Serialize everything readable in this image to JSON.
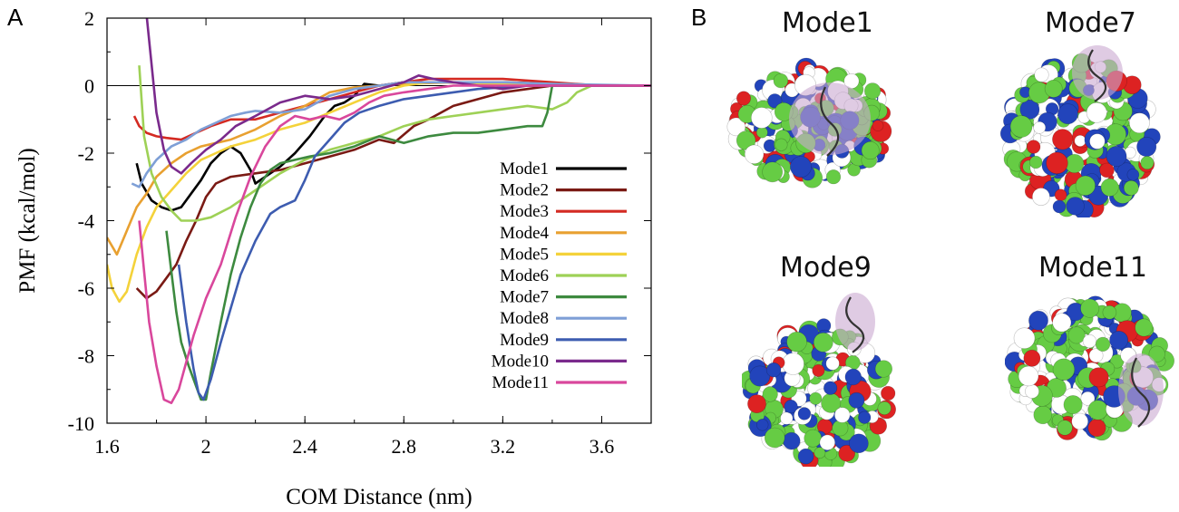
{
  "panels": {
    "a": "A",
    "b": "B"
  },
  "chart_data": {
    "type": "line",
    "xlabel": "COM Distance (nm)",
    "ylabel": "PMF (kcal/mol)",
    "xlim": [
      1.6,
      3.8
    ],
    "ylim": [
      -10,
      2
    ],
    "xticks": [
      1.6,
      2,
      2.4,
      2.8,
      3.2,
      3.6
    ],
    "xtick_labels": [
      "1.6",
      "2",
      "2.4",
      "2.8",
      "3.2",
      "3.6"
    ],
    "yticks": [
      -10,
      -8,
      -6,
      -4,
      -2,
      0,
      2
    ],
    "ytick_labels": [
      "-10",
      "-8",
      "-6",
      "-4",
      "-2",
      "0",
      "2"
    ],
    "grid": false,
    "legend_position": "bottom-right",
    "series": [
      {
        "name": "Mode1",
        "color": "#000000",
        "points": [
          [
            1.72,
            -2.3
          ],
          [
            1.74,
            -2.9
          ],
          [
            1.78,
            -3.4
          ],
          [
            1.82,
            -3.6
          ],
          [
            1.86,
            -3.7
          ],
          [
            1.9,
            -3.6
          ],
          [
            1.94,
            -3.2
          ],
          [
            1.98,
            -2.8
          ],
          [
            2.02,
            -2.3
          ],
          [
            2.06,
            -2.0
          ],
          [
            2.1,
            -1.8
          ],
          [
            2.14,
            -2.0
          ],
          [
            2.18,
            -2.5
          ],
          [
            2.2,
            -2.9
          ],
          [
            2.24,
            -2.7
          ],
          [
            2.3,
            -2.4
          ],
          [
            2.36,
            -2.0
          ],
          [
            2.42,
            -1.5
          ],
          [
            2.48,
            -0.9
          ],
          [
            2.52,
            -0.6
          ],
          [
            2.56,
            -0.5
          ],
          [
            2.6,
            -0.3
          ],
          [
            2.64,
            0.05
          ],
          [
            2.7,
            0.0
          ],
          [
            2.8,
            0.1
          ],
          [
            2.9,
            0.1
          ],
          [
            3.0,
            0.1
          ],
          [
            3.2,
            0.1
          ],
          [
            3.4,
            0.05
          ],
          [
            3.6,
            0.0
          ],
          [
            3.8,
            0.0
          ]
        ]
      },
      {
        "name": "Mode2",
        "color": "#7a1a14",
        "points": [
          [
            1.72,
            -6.0
          ],
          [
            1.76,
            -6.3
          ],
          [
            1.8,
            -6.1
          ],
          [
            1.84,
            -5.7
          ],
          [
            1.88,
            -5.3
          ],
          [
            1.92,
            -4.6
          ],
          [
            1.96,
            -4.0
          ],
          [
            2.0,
            -3.3
          ],
          [
            2.04,
            -2.9
          ],
          [
            2.1,
            -2.7
          ],
          [
            2.2,
            -2.6
          ],
          [
            2.3,
            -2.5
          ],
          [
            2.4,
            -2.3
          ],
          [
            2.5,
            -2.1
          ],
          [
            2.6,
            -1.9
          ],
          [
            2.7,
            -1.6
          ],
          [
            2.76,
            -1.7
          ],
          [
            2.84,
            -1.2
          ],
          [
            2.9,
            -1.0
          ],
          [
            3.0,
            -0.6
          ],
          [
            3.1,
            -0.4
          ],
          [
            3.2,
            -0.2
          ],
          [
            3.3,
            -0.1
          ],
          [
            3.4,
            0.0
          ],
          [
            3.6,
            0.0
          ],
          [
            3.8,
            0.0
          ]
        ]
      },
      {
        "name": "Mode3",
        "color": "#d42a22",
        "points": [
          [
            1.71,
            -0.9
          ],
          [
            1.73,
            -1.2
          ],
          [
            1.76,
            -1.4
          ],
          [
            1.8,
            -1.5
          ],
          [
            1.84,
            -1.55
          ],
          [
            1.9,
            -1.6
          ],
          [
            1.96,
            -1.4
          ],
          [
            2.02,
            -1.2
          ],
          [
            2.1,
            -1.0
          ],
          [
            2.2,
            -1.0
          ],
          [
            2.3,
            -0.8
          ],
          [
            2.4,
            -0.6
          ],
          [
            2.5,
            -0.4
          ],
          [
            2.6,
            -0.2
          ],
          [
            2.7,
            0.0
          ],
          [
            2.8,
            0.1
          ],
          [
            2.9,
            0.2
          ],
          [
            3.0,
            0.2
          ],
          [
            3.2,
            0.2
          ],
          [
            3.4,
            0.1
          ],
          [
            3.6,
            0.0
          ],
          [
            3.8,
            0.0
          ]
        ]
      },
      {
        "name": "Mode4",
        "color": "#e8a030",
        "points": [
          [
            1.6,
            -4.5
          ],
          [
            1.64,
            -5.0
          ],
          [
            1.68,
            -4.3
          ],
          [
            1.72,
            -3.6
          ],
          [
            1.76,
            -3.2
          ],
          [
            1.8,
            -2.7
          ],
          [
            1.86,
            -2.3
          ],
          [
            1.92,
            -2.0
          ],
          [
            1.98,
            -1.8
          ],
          [
            2.04,
            -1.7
          ],
          [
            2.1,
            -1.6
          ],
          [
            2.2,
            -1.3
          ],
          [
            2.3,
            -0.9
          ],
          [
            2.4,
            -0.6
          ],
          [
            2.5,
            -0.2
          ],
          [
            2.6,
            -0.05
          ],
          [
            2.7,
            0.0
          ],
          [
            2.8,
            0.05
          ],
          [
            3.0,
            0.1
          ],
          [
            3.2,
            0.0
          ],
          [
            3.4,
            0.0
          ],
          [
            3.8,
            0.0
          ]
        ]
      },
      {
        "name": "Mode5",
        "color": "#f4d23a",
        "points": [
          [
            1.6,
            -5.3
          ],
          [
            1.62,
            -6.0
          ],
          [
            1.65,
            -6.4
          ],
          [
            1.68,
            -6.1
          ],
          [
            1.72,
            -5.0
          ],
          [
            1.76,
            -4.2
          ],
          [
            1.8,
            -3.6
          ],
          [
            1.86,
            -3.1
          ],
          [
            1.92,
            -2.6
          ],
          [
            1.98,
            -2.2
          ],
          [
            2.04,
            -2.0
          ],
          [
            2.1,
            -1.8
          ],
          [
            2.2,
            -1.6
          ],
          [
            2.3,
            -1.3
          ],
          [
            2.4,
            -1.1
          ],
          [
            2.5,
            -0.8
          ],
          [
            2.6,
            -0.5
          ],
          [
            2.7,
            -0.2
          ],
          [
            2.8,
            0.0
          ],
          [
            2.9,
            0.1
          ],
          [
            3.0,
            0.1
          ],
          [
            3.2,
            0.05
          ],
          [
            3.4,
            0.0
          ],
          [
            3.8,
            0.0
          ]
        ]
      },
      {
        "name": "Mode6",
        "color": "#9ed156",
        "points": [
          [
            1.73,
            0.6
          ],
          [
            1.75,
            -1.5
          ],
          [
            1.78,
            -2.6
          ],
          [
            1.82,
            -3.3
          ],
          [
            1.86,
            -3.7
          ],
          [
            1.9,
            -4.0
          ],
          [
            1.96,
            -4.0
          ],
          [
            2.02,
            -3.9
          ],
          [
            2.1,
            -3.6
          ],
          [
            2.2,
            -3.1
          ],
          [
            2.3,
            -2.6
          ],
          [
            2.4,
            -2.2
          ],
          [
            2.5,
            -1.9
          ],
          [
            2.6,
            -1.7
          ],
          [
            2.7,
            -1.5
          ],
          [
            2.8,
            -1.2
          ],
          [
            2.9,
            -1.0
          ],
          [
            3.0,
            -0.9
          ],
          [
            3.1,
            -0.8
          ],
          [
            3.2,
            -0.7
          ],
          [
            3.3,
            -0.6
          ],
          [
            3.4,
            -0.7
          ],
          [
            3.46,
            -0.5
          ],
          [
            3.5,
            -0.2
          ],
          [
            3.56,
            0.0
          ],
          [
            3.6,
            0.0
          ],
          [
            3.8,
            0.0
          ]
        ]
      },
      {
        "name": "Mode7",
        "color": "#3d8a3f",
        "points": [
          [
            1.84,
            -4.3
          ],
          [
            1.86,
            -5.5
          ],
          [
            1.88,
            -6.7
          ],
          [
            1.9,
            -7.6
          ],
          [
            1.93,
            -8.3
          ],
          [
            1.96,
            -8.9
          ],
          [
            1.98,
            -9.3
          ],
          [
            2.0,
            -9.3
          ],
          [
            2.02,
            -8.5
          ],
          [
            2.06,
            -7.0
          ],
          [
            2.1,
            -5.6
          ],
          [
            2.14,
            -4.5
          ],
          [
            2.18,
            -3.6
          ],
          [
            2.22,
            -2.9
          ],
          [
            2.26,
            -2.5
          ],
          [
            2.3,
            -2.3
          ],
          [
            2.36,
            -2.2
          ],
          [
            2.42,
            -2.1
          ],
          [
            2.5,
            -2.0
          ],
          [
            2.6,
            -1.8
          ],
          [
            2.7,
            -1.5
          ],
          [
            2.8,
            -1.7
          ],
          [
            2.9,
            -1.5
          ],
          [
            3.0,
            -1.4
          ],
          [
            3.1,
            -1.4
          ],
          [
            3.2,
            -1.3
          ],
          [
            3.3,
            -1.2
          ],
          [
            3.36,
            -1.2
          ],
          [
            3.38,
            -0.8
          ],
          [
            3.4,
            0.0
          ],
          [
            3.5,
            0.0
          ],
          [
            3.8,
            0.0
          ]
        ]
      },
      {
        "name": "Mode8",
        "color": "#7e9fd6",
        "points": [
          [
            1.7,
            -2.9
          ],
          [
            1.73,
            -3.0
          ],
          [
            1.76,
            -2.6
          ],
          [
            1.8,
            -2.2
          ],
          [
            1.86,
            -1.8
          ],
          [
            1.92,
            -1.6
          ],
          [
            1.98,
            -1.3
          ],
          [
            2.04,
            -1.1
          ],
          [
            2.1,
            -0.9
          ],
          [
            2.16,
            -0.8
          ],
          [
            2.2,
            -0.75
          ],
          [
            2.3,
            -0.8
          ],
          [
            2.4,
            -0.7
          ],
          [
            2.5,
            -0.3
          ],
          [
            2.6,
            -0.1
          ],
          [
            2.7,
            0.0
          ],
          [
            2.8,
            0.1
          ],
          [
            2.9,
            0.1
          ],
          [
            3.0,
            0.1
          ],
          [
            3.2,
            0.1
          ],
          [
            3.4,
            0.05
          ],
          [
            3.8,
            0.0
          ]
        ]
      },
      {
        "name": "Mode9",
        "color": "#3d5cb0",
        "points": [
          [
            1.89,
            -5.3
          ],
          [
            1.92,
            -7.0
          ],
          [
            1.95,
            -8.4
          ],
          [
            1.97,
            -9.1
          ],
          [
            1.99,
            -9.3
          ],
          [
            2.02,
            -8.7
          ],
          [
            2.06,
            -7.6
          ],
          [
            2.1,
            -6.6
          ],
          [
            2.14,
            -5.6
          ],
          [
            2.2,
            -4.6
          ],
          [
            2.26,
            -3.8
          ],
          [
            2.3,
            -3.6
          ],
          [
            2.36,
            -3.4
          ],
          [
            2.4,
            -2.8
          ],
          [
            2.44,
            -2.1
          ],
          [
            2.5,
            -1.6
          ],
          [
            2.56,
            -1.1
          ],
          [
            2.62,
            -0.8
          ],
          [
            2.7,
            -0.6
          ],
          [
            2.8,
            -0.4
          ],
          [
            2.9,
            -0.3
          ],
          [
            3.0,
            -0.2
          ],
          [
            3.1,
            -0.1
          ],
          [
            3.2,
            -0.05
          ],
          [
            3.3,
            0.0
          ],
          [
            3.4,
            0.0
          ],
          [
            3.8,
            0.0
          ]
        ]
      },
      {
        "name": "Mode10",
        "color": "#7a2a8c",
        "points": [
          [
            1.76,
            2.1
          ],
          [
            1.8,
            -0.8
          ],
          [
            1.83,
            -1.9
          ],
          [
            1.86,
            -2.4
          ],
          [
            1.9,
            -2.6
          ],
          [
            1.94,
            -2.3
          ],
          [
            2.0,
            -1.9
          ],
          [
            2.06,
            -1.6
          ],
          [
            2.12,
            -1.2
          ],
          [
            2.2,
            -0.9
          ],
          [
            2.3,
            -0.5
          ],
          [
            2.4,
            -0.3
          ],
          [
            2.5,
            -0.4
          ],
          [
            2.6,
            -0.3
          ],
          [
            2.7,
            -0.1
          ],
          [
            2.8,
            0.1
          ],
          [
            2.86,
            0.3
          ],
          [
            2.92,
            0.2
          ],
          [
            3.0,
            0.1
          ],
          [
            3.1,
            0.0
          ],
          [
            3.2,
            -0.1
          ],
          [
            3.3,
            0.0
          ],
          [
            3.4,
            0.0
          ],
          [
            3.8,
            0.0
          ]
        ]
      },
      {
        "name": "Mode11",
        "color": "#d9479c",
        "points": [
          [
            1.73,
            -4.0
          ],
          [
            1.75,
            -5.5
          ],
          [
            1.77,
            -7.0
          ],
          [
            1.8,
            -8.3
          ],
          [
            1.83,
            -9.3
          ],
          [
            1.86,
            -9.4
          ],
          [
            1.89,
            -9.0
          ],
          [
            1.92,
            -8.2
          ],
          [
            1.95,
            -7.4
          ],
          [
            2.0,
            -6.3
          ],
          [
            2.06,
            -5.3
          ],
          [
            2.12,
            -3.9
          ],
          [
            2.18,
            -2.7
          ],
          [
            2.24,
            -1.8
          ],
          [
            2.3,
            -1.2
          ],
          [
            2.36,
            -0.9
          ],
          [
            2.42,
            -1.0
          ],
          [
            2.48,
            -0.9
          ],
          [
            2.54,
            -1.0
          ],
          [
            2.6,
            -0.8
          ],
          [
            2.66,
            -0.5
          ],
          [
            2.72,
            -0.3
          ],
          [
            2.8,
            -0.2
          ],
          [
            2.9,
            -0.1
          ],
          [
            3.0,
            0.0
          ],
          [
            3.2,
            0.0
          ],
          [
            3.4,
            0.0
          ],
          [
            3.8,
            0.0
          ]
        ]
      }
    ]
  },
  "modes_panel": [
    {
      "title": "Mode1",
      "surface": "flat"
    },
    {
      "title": "Mode7",
      "surface": "tall"
    },
    {
      "title": "Mode9",
      "surface": "tall"
    },
    {
      "title": "Mode11",
      "surface": "wide"
    }
  ],
  "surface_colors": {
    "hydrophobic": "#ffffff",
    "polar": "#66cc44",
    "basic": "#2244bb",
    "acidic": "#dd2222",
    "peptide": "#c9a8d0"
  }
}
